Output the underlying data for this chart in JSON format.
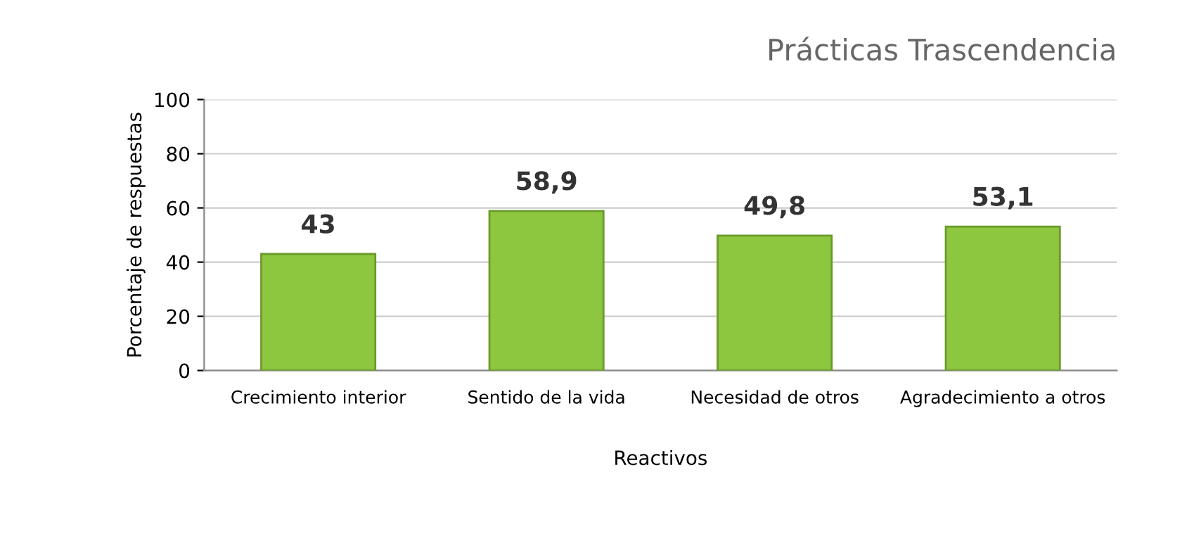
{
  "chart_data": {
    "type": "bar",
    "title": "Prácticas Trascendencia",
    "xlabel": "Reactivos",
    "ylabel": "Porcentaje de respuestas",
    "categories": [
      "Crecimiento interior",
      "Sentido de la vida",
      "Necesidad de otros",
      "Agradecimiento a otros"
    ],
    "values": [
      43,
      58.9,
      49.8,
      53.1
    ],
    "value_labels": [
      "43",
      "58,9",
      "49,8",
      "53,1"
    ],
    "color": "#8dc63f",
    "ylim": [
      0,
      100
    ],
    "yticks": [
      0,
      20,
      40,
      60,
      80,
      100
    ],
    "grid": "y"
  }
}
